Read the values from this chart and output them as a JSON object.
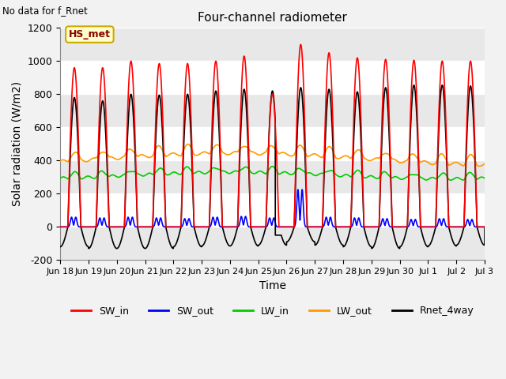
{
  "title": "Four-channel radiometer",
  "top_left_text": "No data for f_Rnet",
  "legend_label": "HS_met",
  "xlabel": "Time",
  "ylabel": "Solar radiation (W/m2)",
  "ylim": [
    -200,
    1200
  ],
  "yticks": [
    -200,
    0,
    200,
    400,
    600,
    800,
    1000,
    1200
  ],
  "x_tick_labels": [
    "Jun 18",
    "Jun 19",
    "Jun 20",
    "Jun 21",
    "Jun 22",
    "Jun 23",
    "Jun 24",
    "Jun 25",
    "Jun 26",
    "Jun 27",
    "Jun 28",
    "Jun 29",
    "Jun 30",
    "Jul 1",
    "Jul 2",
    "Jul 3"
  ],
  "series": {
    "SW_in": {
      "color": "#ff0000",
      "linewidth": 1.2
    },
    "SW_out": {
      "color": "#0000ff",
      "linewidth": 1.2
    },
    "LW_in": {
      "color": "#00cc00",
      "linewidth": 1.2
    },
    "LW_out": {
      "color": "#ff9900",
      "linewidth": 1.2
    },
    "Rnet_4way": {
      "color": "#000000",
      "linewidth": 1.2
    }
  },
  "fig_bg": "#f2f2f2",
  "plot_bg": "#ffffff",
  "band_color": "#e8e8e8",
  "num_days": 15
}
